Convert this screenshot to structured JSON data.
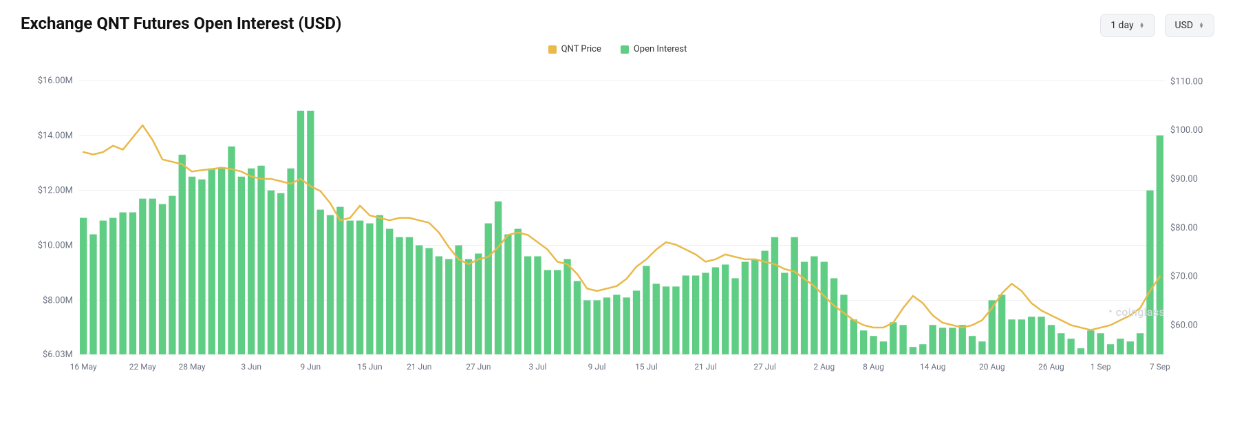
{
  "title": "Exchange QNT Futures Open Interest (USD)",
  "controls": {
    "timeframe": "1 day",
    "currency": "USD"
  },
  "legend": [
    {
      "label": "QNT Price",
      "color": "#e9b949"
    },
    {
      "label": "Open Interest",
      "color": "#5fce84"
    }
  ],
  "watermark": "coinglass",
  "chart": {
    "type": "bar+line",
    "background_color": "#ffffff",
    "grid_color": "#efefef",
    "bar_color": "#5fce84",
    "line_color": "#e9b949",
    "line_width": 2.5,
    "bar_width_ratio": 0.72,
    "left_axis": {
      "min": 6.03,
      "max": 16.5,
      "ticks": [
        {
          "v": 6.03,
          "label": "$6.03M"
        },
        {
          "v": 8.0,
          "label": "$8.00M"
        },
        {
          "v": 10.0,
          "label": "$10.00M"
        },
        {
          "v": 12.0,
          "label": "$12.00M"
        },
        {
          "v": 14.0,
          "label": "$14.00M"
        },
        {
          "v": 16.0,
          "label": "$16.00M"
        }
      ],
      "fontsize": 13,
      "color": "#6b7280"
    },
    "right_axis": {
      "min": 54,
      "max": 113,
      "ticks": [
        {
          "v": 60,
          "label": "$60.00"
        },
        {
          "v": 70,
          "label": "$70.00"
        },
        {
          "v": 80,
          "label": "$80.00"
        },
        {
          "v": 90,
          "label": "$90.00"
        },
        {
          "v": 100,
          "label": "$100.00"
        },
        {
          "v": 110,
          "label": "$110.00"
        }
      ],
      "fontsize": 13,
      "color": "#6b7280"
    },
    "x_labels": [
      "16 May",
      "22 May",
      "28 May",
      "3 Jun",
      "9 Jun",
      "15 Jun",
      "21 Jun",
      "27 Jun",
      "3 Jul",
      "9 Jul",
      "15 Jul",
      "21 Jul",
      "27 Jul",
      "2 Aug",
      "8 Aug",
      "14 Aug",
      "20 Aug",
      "26 Aug",
      "1 Sep",
      "7 Sep"
    ],
    "bar_values": [
      11.0,
      10.4,
      10.9,
      11.0,
      11.2,
      11.2,
      11.7,
      11.7,
      11.5,
      11.8,
      13.3,
      12.5,
      12.4,
      12.8,
      12.8,
      13.6,
      12.5,
      12.8,
      12.9,
      12.0,
      11.9,
      12.8,
      14.9,
      14.9,
      11.3,
      11.1,
      11.4,
      10.9,
      10.9,
      10.8,
      11.1,
      10.6,
      10.3,
      10.3,
      10.0,
      9.9,
      9.6,
      9.5,
      10.0,
      9.5,
      9.7,
      10.8,
      11.6,
      10.4,
      10.6,
      9.6,
      9.6,
      9.1,
      9.1,
      9.5,
      8.7,
      8.0,
      8.0,
      8.1,
      8.2,
      8.1,
      8.35,
      9.25,
      8.6,
      8.5,
      8.5,
      8.9,
      8.9,
      9.0,
      9.2,
      9.3,
      8.8,
      9.4,
      9.5,
      9.8,
      10.3,
      9.0,
      10.3,
      9.4,
      9.6,
      9.4,
      8.8,
      8.2,
      7.3,
      6.9,
      6.7,
      6.5,
      7.2,
      7.1,
      6.3,
      6.4,
      7.1,
      7.0,
      7.0,
      7.1,
      6.7,
      6.5,
      8.0,
      8.2,
      7.3,
      7.3,
      7.4,
      7.4,
      7.1,
      6.8,
      6.6,
      6.25,
      6.9,
      6.8,
      6.4,
      6.6,
      6.5,
      6.8,
      12.0,
      14.0
    ],
    "line_values": [
      95.5,
      95.0,
      95.5,
      96.8,
      96.0,
      98.5,
      101.0,
      98.0,
      94.0,
      93.5,
      93.0,
      91.5,
      91.8,
      92.0,
      92.3,
      92.0,
      91.5,
      90.5,
      90.0,
      90.0,
      89.5,
      89.0,
      90.0,
      88.5,
      87.5,
      85.0,
      81.5,
      82.0,
      84.5,
      82.5,
      82.0,
      81.5,
      82.0,
      82.0,
      81.5,
      81.0,
      79.0,
      76.0,
      73.5,
      72.5,
      73.5,
      74.0,
      76.0,
      78.5,
      79.0,
      78.5,
      77.0,
      75.5,
      73.0,
      72.5,
      70.5,
      67.5,
      67.0,
      67.5,
      68.0,
      69.5,
      72.0,
      73.5,
      75.5,
      77.0,
      76.5,
      75.5,
      74.5,
      73.0,
      73.5,
      74.5,
      74.0,
      73.5,
      73.5,
      73.0,
      72.5,
      71.5,
      71.0,
      69.5,
      68.0,
      66.0,
      64.0,
      62.5,
      61.0,
      60.0,
      59.5,
      59.5,
      60.5,
      63.5,
      66.0,
      64.5,
      62.0,
      60.5,
      60.0,
      59.5,
      60.0,
      61.0,
      63.5,
      66.5,
      68.5,
      67.0,
      64.5,
      63.0,
      62.0,
      61.0,
      60.0,
      59.5,
      59.0,
      59.5,
      60.0,
      61.0,
      62.0,
      63.5,
      67.0,
      70.0
    ]
  }
}
